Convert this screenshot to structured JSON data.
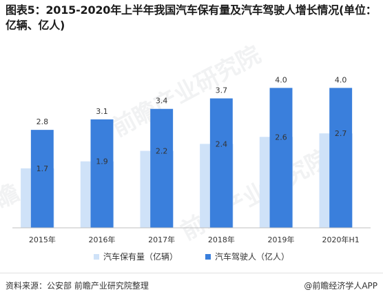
{
  "title": "图表5：2015-2020年上半年我国汽车保有量及汽车驾驶人增长情况(单位：亿辆、亿人)",
  "watermarks": [
    "前瞻产业研究院",
    "前瞻产业研究院",
    "前瞻"
  ],
  "colors": {
    "vehicles": "#cfe2f8",
    "drivers": "#3a7fdc"
  },
  "chart_data": {
    "type": "bar",
    "title": "图表5：2015-2020年上半年我国汽车保有量及汽车驾驶人增长情况(单位：亿辆、亿人)",
    "categories": [
      "2015年",
      "2016年",
      "2017年",
      "2018年",
      "2019年",
      "2020年H1"
    ],
    "series": [
      {
        "name": "汽车保有量（亿辆）",
        "values": [
          1.7,
          1.9,
          2.2,
          2.4,
          2.6,
          2.7
        ]
      },
      {
        "name": "汽车驾驶人（亿人）",
        "values": [
          2.8,
          3.1,
          3.4,
          3.7,
          4.0,
          4.0
        ]
      }
    ],
    "ylim": [
      0,
      4.5
    ],
    "grid": false,
    "legend_position": "bottom"
  },
  "legend": {
    "vehicles_label": "汽车保有量（亿辆）",
    "drivers_label": "汽车驾驶人（亿人）"
  },
  "footer": {
    "source": "资料来源：公安部 前瞻产业研究院整理",
    "brand": "@前瞻经济学人APP"
  }
}
